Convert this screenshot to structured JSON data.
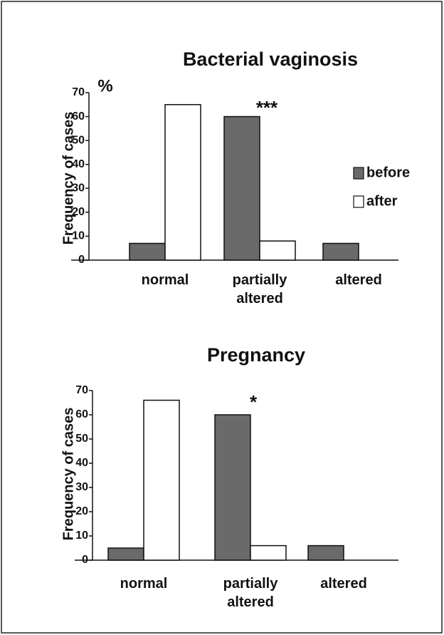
{
  "chart_data": [
    {
      "type": "bar",
      "title": "Bacterial vaginosis",
      "y_label": "Frequency of cases",
      "y_unit": "%",
      "categories": [
        "normal",
        "partially altered",
        "altered"
      ],
      "series": [
        {
          "name": "before",
          "color": "#6a6a6a",
          "values": [
            7,
            60,
            7
          ]
        },
        {
          "name": "after",
          "color": "#ffffff",
          "values": [
            65,
            8,
            0
          ]
        }
      ],
      "ylim": [
        0,
        70
      ],
      "yticks": [
        0,
        10,
        20,
        30,
        40,
        50,
        60,
        70
      ],
      "annotations": [
        "***"
      ],
      "legend": "right"
    },
    {
      "type": "bar",
      "title": "Pregnancy",
      "y_label": "Frequency of cases",
      "categories": [
        "normal",
        "partially altered",
        "altered"
      ],
      "series": [
        {
          "name": "before",
          "color": "#6a6a6a",
          "values": [
            5,
            60,
            6
          ]
        },
        {
          "name": "after",
          "color": "#ffffff",
          "values": [
            66,
            6,
            0
          ]
        }
      ],
      "ylim": [
        0,
        70
      ],
      "yticks": [
        0,
        10,
        20,
        30,
        40,
        50,
        60,
        70
      ],
      "annotations": [
        "*"
      ]
    }
  ]
}
